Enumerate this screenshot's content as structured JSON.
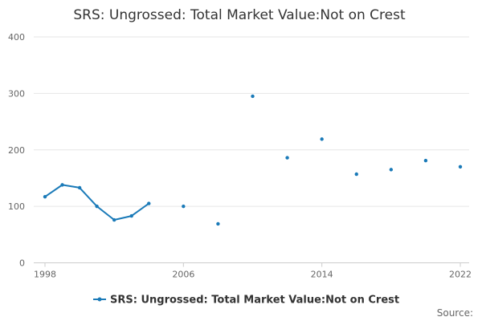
{
  "chart_data": {
    "type": "line",
    "title": "SRS: Ungrossed: Total Market Value:Not on Crest",
    "xlabel": "",
    "ylabel": "",
    "xlim": [
      1998,
      2022
    ],
    "ylim": [
      0,
      400
    ],
    "x_ticks": [
      "1998",
      "2006",
      "2014",
      "2022"
    ],
    "y_ticks": [
      "0",
      "100",
      "200",
      "300",
      "400"
    ],
    "grid": true,
    "legend_position": "bottom-center",
    "series_color": "#1a7ab8",
    "source_label": "Source:",
    "series": [
      {
        "name": "SRS: Ungrossed: Total Market Value:Not on Crest",
        "points": [
          {
            "x": 1998,
            "y": 117
          },
          {
            "x": 1999,
            "y": 138
          },
          {
            "x": 2000,
            "y": 133
          },
          {
            "x": 2001,
            "y": 100
          },
          {
            "x": 2002,
            "y": 76
          },
          {
            "x": 2003,
            "y": 83
          },
          {
            "x": 2004,
            "y": 105
          },
          {
            "x": 2006,
            "y": 100
          },
          {
            "x": 2008,
            "y": 69
          },
          {
            "x": 2010,
            "y": 295
          },
          {
            "x": 2012,
            "y": 186
          },
          {
            "x": 2014,
            "y": 219
          },
          {
            "x": 2016,
            "y": 157
          },
          {
            "x": 2018,
            "y": 165
          },
          {
            "x": 2020,
            "y": 181
          },
          {
            "x": 2022,
            "y": 170
          }
        ]
      }
    ]
  }
}
